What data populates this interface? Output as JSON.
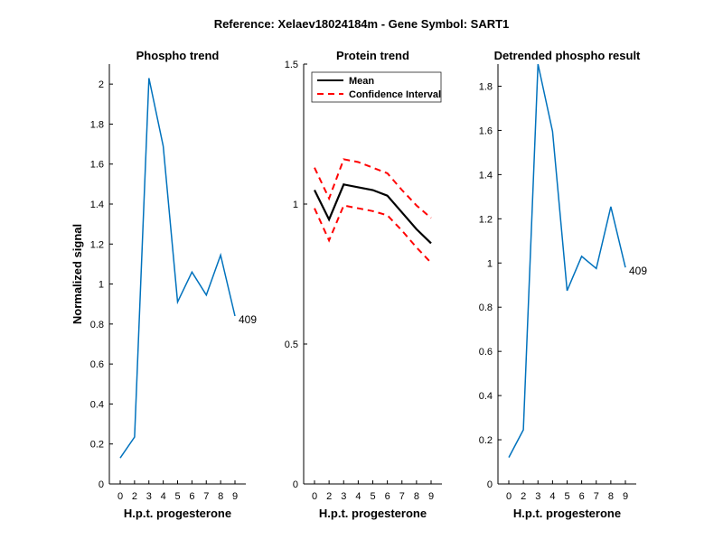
{
  "figure_title": "Reference:  Xelaev18024184m - Gene Symbol:  SART1",
  "colors": {
    "phospho": "#0072BD",
    "mean": "#000000",
    "ci": "#FF0000",
    "axis": "#000000"
  },
  "chart_data": [
    {
      "type": "line",
      "title": "Phospho trend",
      "xlabel": "H.p.t. progesterone",
      "ylabel": "Normalized signal",
      "categories": [
        "0",
        "2",
        "3",
        "4",
        "5",
        "6",
        "7",
        "8",
        "9"
      ],
      "ylim": [
        0,
        2.1
      ],
      "yticks": [
        0,
        0.2,
        0.4,
        0.6,
        0.8,
        1,
        1.2,
        1.4,
        1.6,
        1.8,
        2
      ],
      "series": [
        {
          "values": [
            0.13,
            0.235,
            2.03,
            1.69,
            0.91,
            1.06,
            0.945,
            1.145,
            0.84
          ]
        }
      ],
      "end_label": "409"
    },
    {
      "type": "line",
      "title": "Protein trend",
      "xlabel": "H.p.t. progesterone",
      "ylabel": "",
      "categories": [
        "0",
        "2",
        "3",
        "4",
        "5",
        "6",
        "7",
        "8",
        "9"
      ],
      "ylim": [
        0,
        1.5
      ],
      "yticks": [
        0,
        0.5,
        1,
        1.5
      ],
      "legend": {
        "entries": [
          "Mean",
          "Confidence Interval"
        ],
        "placement": "top-left"
      },
      "series": [
        {
          "name": "Mean",
          "values": [
            1.05,
            0.945,
            1.07,
            1.06,
            1.05,
            1.03,
            0.97,
            0.91,
            0.86
          ]
        },
        {
          "name": "Confidence Interval",
          "values": [
            1.13,
            1.02,
            1.16,
            1.15,
            1.13,
            1.11,
            1.05,
            0.995,
            0.95
          ]
        },
        {
          "name": "Confidence Interval",
          "values": [
            0.985,
            0.87,
            0.995,
            0.985,
            0.975,
            0.96,
            0.905,
            0.845,
            0.79
          ]
        }
      ]
    },
    {
      "type": "line",
      "title": "Detrended phospho result",
      "xlabel": "H.p.t. progesterone",
      "ylabel": "",
      "categories": [
        "0",
        "2",
        "3",
        "4",
        "5",
        "6",
        "7",
        "8",
        "9"
      ],
      "ylim": [
        0,
        1.9
      ],
      "yticks": [
        0,
        0.2,
        0.4,
        0.6,
        0.8,
        1,
        1.2,
        1.4,
        1.6,
        1.8
      ],
      "series": [
        {
          "values": [
            0.12,
            0.245,
            1.9,
            1.595,
            0.875,
            1.03,
            0.975,
            1.255,
            0.98
          ]
        }
      ],
      "end_label": "409"
    }
  ]
}
